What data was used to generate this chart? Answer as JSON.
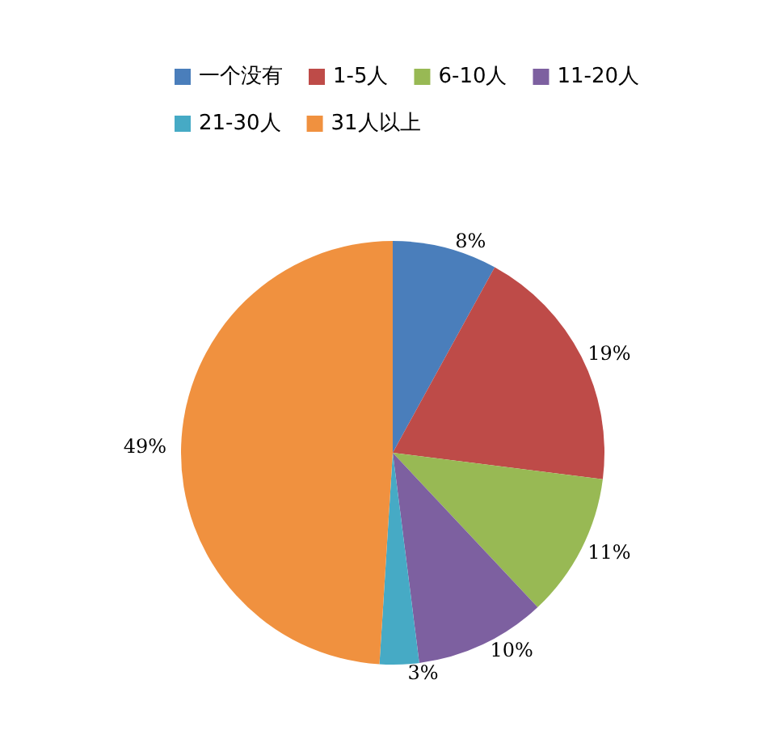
{
  "chart_data": {
    "type": "pie",
    "categories": [
      "一个没有",
      "1-5人",
      "6-10人",
      "11-20人",
      "21-30人",
      "31人以上"
    ],
    "values": [
      8,
      19,
      11,
      10,
      3,
      49
    ],
    "colors": [
      "#4a7ebb",
      "#be4b48",
      "#98b954",
      "#7d60a0",
      "#46aac5",
      "#f0913f"
    ],
    "value_labels": [
      "8%",
      "19%",
      "11%",
      "10%",
      "3%",
      "49%"
    ],
    "legend": "top"
  }
}
